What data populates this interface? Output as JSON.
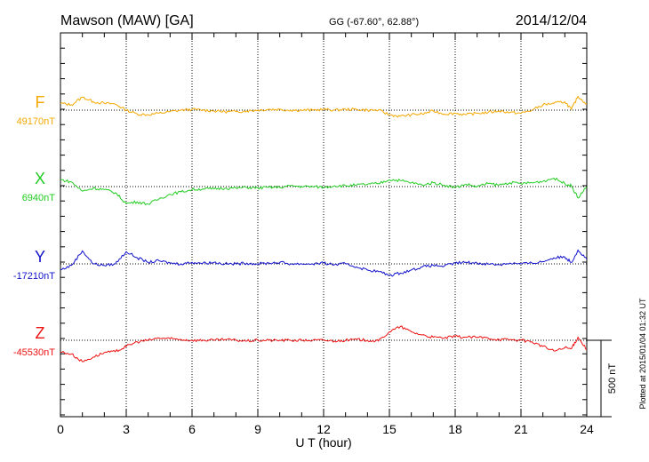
{
  "header": {
    "station": "Mawson (MAW)  [GA]",
    "coords": "GG (-67.60°,  62.88°)",
    "date": "2014/12/04"
  },
  "plotted_note": "Plotted at 2015/01/04 01:32 UT",
  "scale_label": "500 nT",
  "chart_data": {
    "type": "line",
    "title": "Mawson (MAW) [GA] 2014/12/04",
    "xlabel": "U T (hour)",
    "xlim": [
      0,
      24
    ],
    "x_ticks": [
      "0",
      "3",
      "6",
      "9",
      "12",
      "15",
      "18",
      "21",
      "24"
    ],
    "scale_nT": 500,
    "series": [
      {
        "name": "F",
        "baseline_label": "49170nT",
        "color": "#f5a800",
        "x": [
          0,
          0.5,
          1,
          1.5,
          2,
          2.5,
          3,
          3.5,
          4,
          4.5,
          5,
          5.5,
          6,
          6.5,
          7,
          7.5,
          8,
          8.5,
          9,
          9.5,
          10,
          10.5,
          11,
          11.5,
          12,
          12.5,
          13,
          13.5,
          14,
          14.5,
          15,
          15.5,
          16,
          16.5,
          17,
          17.5,
          18,
          18.5,
          19,
          19.5,
          20,
          20.5,
          21,
          21.5,
          22,
          22.5,
          23,
          23.3,
          23.6,
          24
        ],
        "offsets": [
          45,
          35,
          85,
          55,
          45,
          40,
          0,
          -25,
          -30,
          -20,
          -10,
          0,
          5,
          0,
          -5,
          -10,
          -10,
          -5,
          0,
          5,
          5,
          0,
          0,
          0,
          5,
          0,
          5,
          5,
          0,
          0,
          -30,
          -40,
          -30,
          -25,
          -5,
          -25,
          -20,
          -30,
          -20,
          -15,
          -5,
          -15,
          -20,
          0,
          35,
          45,
          55,
          5,
          90,
          40
        ]
      },
      {
        "name": "X",
        "baseline_label": "6940nT",
        "color": "#22cc22",
        "x": [
          0,
          0.5,
          1,
          1.5,
          2,
          2.5,
          3,
          3.5,
          4,
          4.5,
          5,
          5.5,
          6,
          6.5,
          7,
          7.5,
          8,
          8.5,
          9,
          9.5,
          10,
          10.5,
          11,
          11.5,
          12,
          12.5,
          13,
          13.5,
          14,
          14.5,
          15,
          15.5,
          16,
          16.5,
          17,
          17.5,
          18,
          18.5,
          19,
          19.5,
          20,
          20.5,
          21,
          21.5,
          22,
          22.5,
          23,
          23.3,
          23.6,
          24
        ],
        "offsets": [
          45,
          30,
          -30,
          -10,
          -20,
          -40,
          -110,
          -100,
          -115,
          -80,
          -50,
          -35,
          -20,
          -15,
          -15,
          -10,
          -10,
          -5,
          -10,
          -5,
          -5,
          5,
          0,
          0,
          -5,
          5,
          5,
          10,
          15,
          20,
          45,
          40,
          25,
          10,
          25,
          10,
          -5,
          15,
          0,
          20,
          10,
          25,
          20,
          25,
          35,
          55,
          20,
          5,
          -75,
          0
        ]
      },
      {
        "name": "Y",
        "baseline_label": "-17210nT",
        "color": "#1111cc",
        "x": [
          0,
          0.5,
          1,
          1.5,
          2,
          2.5,
          3,
          3.5,
          4,
          4.5,
          5,
          5.5,
          6,
          6.5,
          7,
          7.5,
          8,
          8.5,
          9,
          9.5,
          10,
          10.5,
          11,
          11.5,
          12,
          12.5,
          13,
          13.5,
          14,
          14.5,
          15,
          15.5,
          16,
          16.5,
          17,
          17.5,
          18,
          18.5,
          19,
          19.5,
          20,
          20.5,
          21,
          21.5,
          22,
          22.5,
          23,
          23.3,
          23.6,
          24
        ],
        "offsets": [
          -40,
          -10,
          85,
          0,
          -10,
          0,
          80,
          40,
          10,
          20,
          5,
          0,
          10,
          5,
          10,
          0,
          0,
          5,
          0,
          5,
          10,
          0,
          0,
          0,
          5,
          -5,
          0,
          -20,
          -40,
          -50,
          -75,
          -60,
          -40,
          -20,
          -10,
          -15,
          5,
          10,
          5,
          0,
          -5,
          5,
          0,
          5,
          15,
          40,
          45,
          10,
          90,
          30
        ]
      },
      {
        "name": "Z",
        "baseline_label": "-45530nT",
        "color": "#ee1111",
        "x": [
          0,
          0.5,
          1,
          1.5,
          2,
          2.5,
          3,
          3.5,
          4,
          4.5,
          5,
          5.5,
          6,
          6.5,
          7,
          7.5,
          8,
          8.5,
          9,
          9.5,
          10,
          10.5,
          11,
          11.5,
          12,
          12.5,
          13,
          13.5,
          14,
          14.5,
          15,
          15.5,
          16,
          16.5,
          17,
          17.5,
          18,
          18.5,
          19,
          19.5,
          20,
          20.5,
          21,
          21.5,
          22,
          22.5,
          23,
          23.3,
          23.6,
          24
        ],
        "offsets": [
          -75,
          -90,
          -140,
          -110,
          -80,
          -75,
          -40,
          -10,
          0,
          15,
          10,
          5,
          0,
          0,
          0,
          5,
          0,
          -5,
          0,
          0,
          0,
          0,
          0,
          0,
          0,
          -5,
          0,
          5,
          0,
          -5,
          55,
          90,
          55,
          35,
          20,
          15,
          25,
          20,
          20,
          15,
          5,
          5,
          0,
          -10,
          -40,
          -70,
          -50,
          -55,
          20,
          -60
        ]
      }
    ]
  }
}
